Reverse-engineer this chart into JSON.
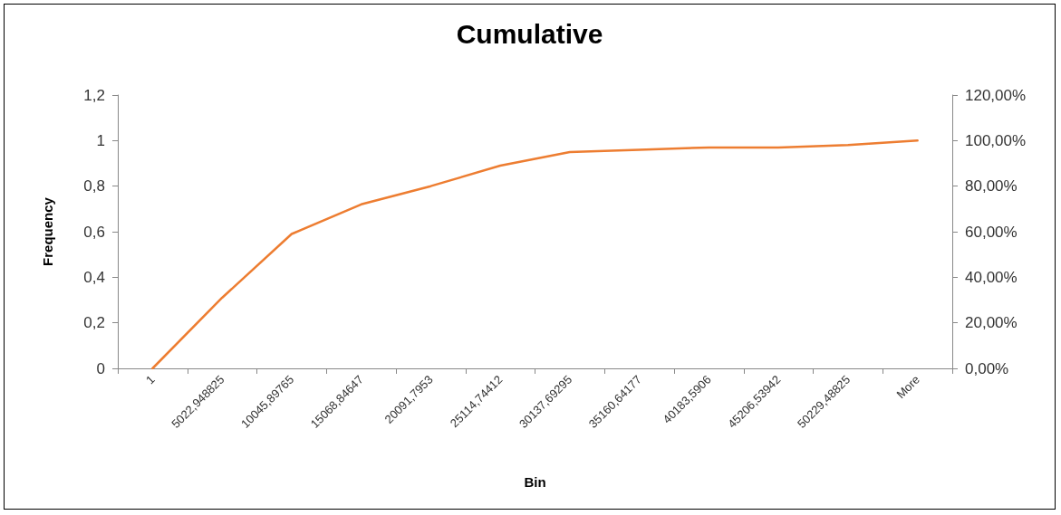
{
  "chart_data": {
    "type": "line",
    "title": "Cumulative",
    "xlabel": "Bin",
    "ylabel": "Frequency",
    "categories": [
      "1",
      "5022,948825",
      "10045,89765",
      "15068,84647",
      "20091,7953",
      "25114,74412",
      "30137,69295",
      "35160,64177",
      "40183,5906",
      "45206,53942",
      "50229,48825",
      "More"
    ],
    "series": [
      {
        "color": "#ed7d31",
        "axis": "y2",
        "values": [
          0,
          31,
          59,
          72,
          80,
          89,
          95,
          96,
          97,
          97,
          98,
          100
        ]
      }
    ],
    "ylim": [
      0,
      1.2
    ],
    "yticks": [
      0,
      {
        "value": 0.2,
        "label": "0,2"
      },
      {
        "value": 0.4,
        "label": "0,4"
      },
      {
        "value": 0.6,
        "label": "0,6"
      },
      {
        "value": 0.8,
        "label": "0,8"
      },
      1,
      {
        "value": 1.2,
        "label": "1,2"
      }
    ],
    "y2lim": [
      0,
      120
    ],
    "y2ticks": [
      {
        "value": 0,
        "label": "0,00%"
      },
      {
        "value": 20,
        "label": "20,00%"
      },
      {
        "value": 40,
        "label": "40,00%"
      },
      {
        "value": 60,
        "label": "60,00%"
      },
      {
        "value": 80,
        "label": "80,00%"
      },
      {
        "value": 100,
        "label": "100,00%"
      },
      {
        "value": 120,
        "label": "120,00%"
      }
    ],
    "grid": false,
    "marker": "none",
    "line_style": "solid"
  }
}
